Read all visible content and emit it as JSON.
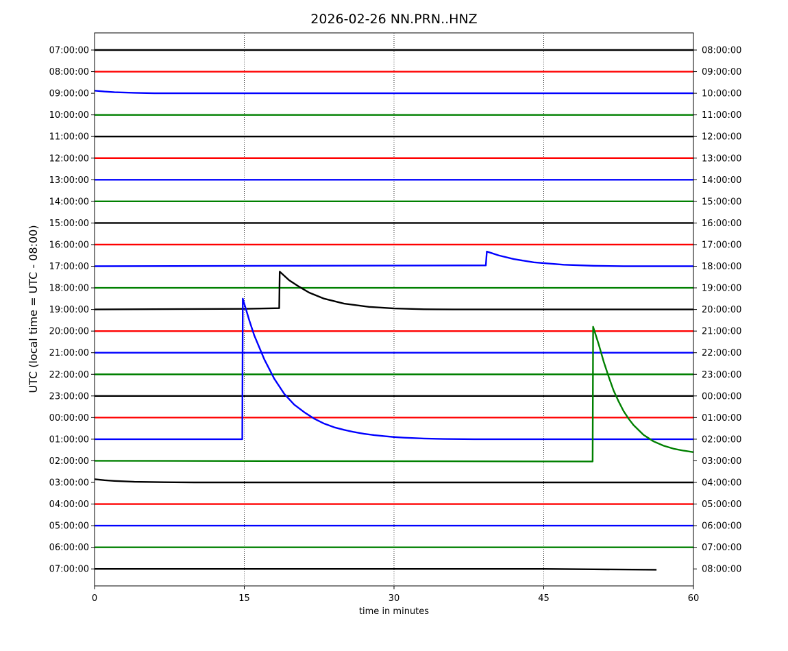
{
  "chart_data": {
    "type": "line",
    "title": "2026-02-26 NN.PRN..HNZ",
    "xlabel": "time in minutes",
    "ylabel": "UTC (local time = UTC - 08:00)",
    "xlim": [
      0,
      60
    ],
    "x_ticks": [
      0,
      15,
      30,
      45,
      60
    ],
    "vertical_gridlines": [
      15,
      30,
      45
    ],
    "trace_colors": [
      "#000000",
      "#ff0000",
      "#0000ff",
      "#008000"
    ],
    "left_tick_labels": [
      "07:00:00",
      "08:00:00",
      "09:00:00",
      "10:00:00",
      "11:00:00",
      "12:00:00",
      "13:00:00",
      "14:00:00",
      "15:00:00",
      "16:00:00",
      "17:00:00",
      "18:00:00",
      "19:00:00",
      "20:00:00",
      "21:00:00",
      "22:00:00",
      "23:00:00",
      "00:00:00",
      "01:00:00",
      "02:00:00",
      "03:00:00",
      "04:00:00",
      "05:00:00",
      "06:00:00",
      "07:00:00"
    ],
    "right_tick_labels": [
      "08:00:00",
      "09:00:00",
      "10:00:00",
      "11:00:00",
      "12:00:00",
      "13:00:00",
      "14:00:00",
      "15:00:00",
      "16:00:00",
      "17:00:00",
      "18:00:00",
      "19:00:00",
      "20:00:00",
      "21:00:00",
      "22:00:00",
      "23:00:00",
      "00:00:00",
      "01:00:00",
      "02:00:00",
      "03:00:00",
      "04:00:00",
      "05:00:00",
      "06:00:00",
      "07:00:00",
      "08:00:00"
    ],
    "traces": [
      {
        "label": "07:00:00",
        "points": [
          [
            0,
            0
          ],
          [
            60,
            0
          ]
        ]
      },
      {
        "label": "08:00:00",
        "points": [
          [
            0,
            0
          ],
          [
            60,
            0
          ]
        ]
      },
      {
        "label": "09:00:00",
        "points": [
          [
            0,
            0.12
          ],
          [
            1,
            0.08
          ],
          [
            2,
            0.05
          ],
          [
            4,
            0.02
          ],
          [
            6,
            0
          ],
          [
            60,
            0
          ]
        ]
      },
      {
        "label": "10:00:00",
        "points": [
          [
            0,
            0
          ],
          [
            60,
            0
          ]
        ]
      },
      {
        "label": "11:00:00",
        "points": [
          [
            0,
            0
          ],
          [
            60,
            0
          ]
        ]
      },
      {
        "label": "12:00:00",
        "points": [
          [
            0,
            0
          ],
          [
            60,
            0
          ]
        ]
      },
      {
        "label": "13:00:00",
        "points": [
          [
            0,
            0
          ],
          [
            60,
            0
          ]
        ]
      },
      {
        "label": "14:00:00",
        "points": [
          [
            0,
            0
          ],
          [
            60,
            0
          ]
        ]
      },
      {
        "label": "15:00:00",
        "points": [
          [
            0,
            0
          ],
          [
            60,
            0
          ]
        ]
      },
      {
        "label": "16:00:00",
        "points": [
          [
            0,
            0
          ],
          [
            60,
            0
          ]
        ]
      },
      {
        "label": "17:00:00",
        "points": [
          [
            0,
            0
          ],
          [
            39.2,
            0.04
          ],
          [
            39.3,
            0.68
          ],
          [
            40.5,
            0.5
          ],
          [
            42,
            0.33
          ],
          [
            44,
            0.18
          ],
          [
            47,
            0.07
          ],
          [
            50,
            0.02
          ],
          [
            53,
            0
          ],
          [
            60,
            0
          ]
        ]
      },
      {
        "label": "18:00:00",
        "points": [
          [
            0,
            0
          ],
          [
            60,
            0
          ]
        ]
      },
      {
        "label": "19:00:00",
        "points": [
          [
            0,
            0
          ],
          [
            15,
            0.03
          ],
          [
            18.5,
            0.06
          ],
          [
            18.55,
            1.75
          ],
          [
            19.5,
            1.35
          ],
          [
            20.5,
            1.05
          ],
          [
            21.5,
            0.78
          ],
          [
            23,
            0.5
          ],
          [
            25,
            0.27
          ],
          [
            27.5,
            0.12
          ],
          [
            30,
            0.05
          ],
          [
            33,
            0.01
          ],
          [
            36,
            0
          ],
          [
            60,
            0
          ]
        ]
      },
      {
        "label": "20:00:00",
        "points": [
          [
            0,
            0
          ],
          [
            60,
            0
          ]
        ]
      },
      {
        "label": "21:00:00",
        "points": [
          [
            0,
            0
          ],
          [
            60,
            0
          ]
        ]
      },
      {
        "label": "22:00:00",
        "points": [
          [
            0,
            0
          ],
          [
            60,
            0
          ]
        ]
      },
      {
        "label": "23:00:00",
        "points": [
          [
            0,
            0
          ],
          [
            60,
            0
          ]
        ]
      },
      {
        "label": "00:00:00",
        "points": [
          [
            0,
            0
          ],
          [
            60,
            0
          ]
        ]
      },
      {
        "label": "01:00:00",
        "points": [
          [
            0,
            0
          ],
          [
            14.8,
            0
          ],
          [
            14.85,
            6.5
          ],
          [
            15.5,
            5.5
          ],
          [
            16,
            4.8
          ],
          [
            17,
            3.7
          ],
          [
            18,
            2.8
          ],
          [
            19,
            2.1
          ],
          [
            20,
            1.6
          ],
          [
            21,
            1.25
          ],
          [
            22,
            0.95
          ],
          [
            23,
            0.72
          ],
          [
            24,
            0.55
          ],
          [
            25,
            0.43
          ],
          [
            26,
            0.33
          ],
          [
            27,
            0.25
          ],
          [
            28,
            0.19
          ],
          [
            29,
            0.14
          ],
          [
            30,
            0.1
          ],
          [
            31,
            0.07
          ],
          [
            32,
            0.05
          ],
          [
            33,
            0.03
          ],
          [
            35,
            0.01
          ],
          [
            38,
            0
          ],
          [
            60,
            0
          ]
        ]
      },
      {
        "label": "02:00:00",
        "points": [
          [
            0,
            0
          ],
          [
            49.9,
            -0.03
          ],
          [
            49.95,
            6.2
          ],
          [
            50.5,
            5.4
          ],
          [
            51,
            4.6
          ],
          [
            51.5,
            3.9
          ],
          [
            52,
            3.25
          ],
          [
            52.5,
            2.75
          ],
          [
            53,
            2.3
          ],
          [
            53.5,
            1.95
          ],
          [
            54,
            1.65
          ],
          [
            55,
            1.2
          ],
          [
            56,
            0.9
          ],
          [
            57,
            0.7
          ],
          [
            58,
            0.56
          ],
          [
            59,
            0.47
          ],
          [
            60,
            0.4
          ]
        ]
      },
      {
        "label": "03:00:00",
        "points": [
          [
            0,
            0.15
          ],
          [
            1,
            0.1
          ],
          [
            2,
            0.07
          ],
          [
            4,
            0.03
          ],
          [
            7,
            0.01
          ],
          [
            10,
            0
          ],
          [
            60,
            0
          ]
        ]
      },
      {
        "label": "04:00:00",
        "points": [
          [
            0,
            0
          ],
          [
            60,
            0
          ]
        ]
      },
      {
        "label": "05:00:00",
        "points": [
          [
            0,
            0
          ],
          [
            60,
            0
          ]
        ]
      },
      {
        "label": "06:00:00",
        "points": [
          [
            0,
            0
          ],
          [
            60,
            0
          ]
        ]
      },
      {
        "label": "07:00:00",
        "points": [
          [
            0,
            0
          ],
          [
            45,
            0
          ],
          [
            50,
            -0.02
          ],
          [
            56.3,
            -0.04
          ]
        ]
      }
    ]
  }
}
